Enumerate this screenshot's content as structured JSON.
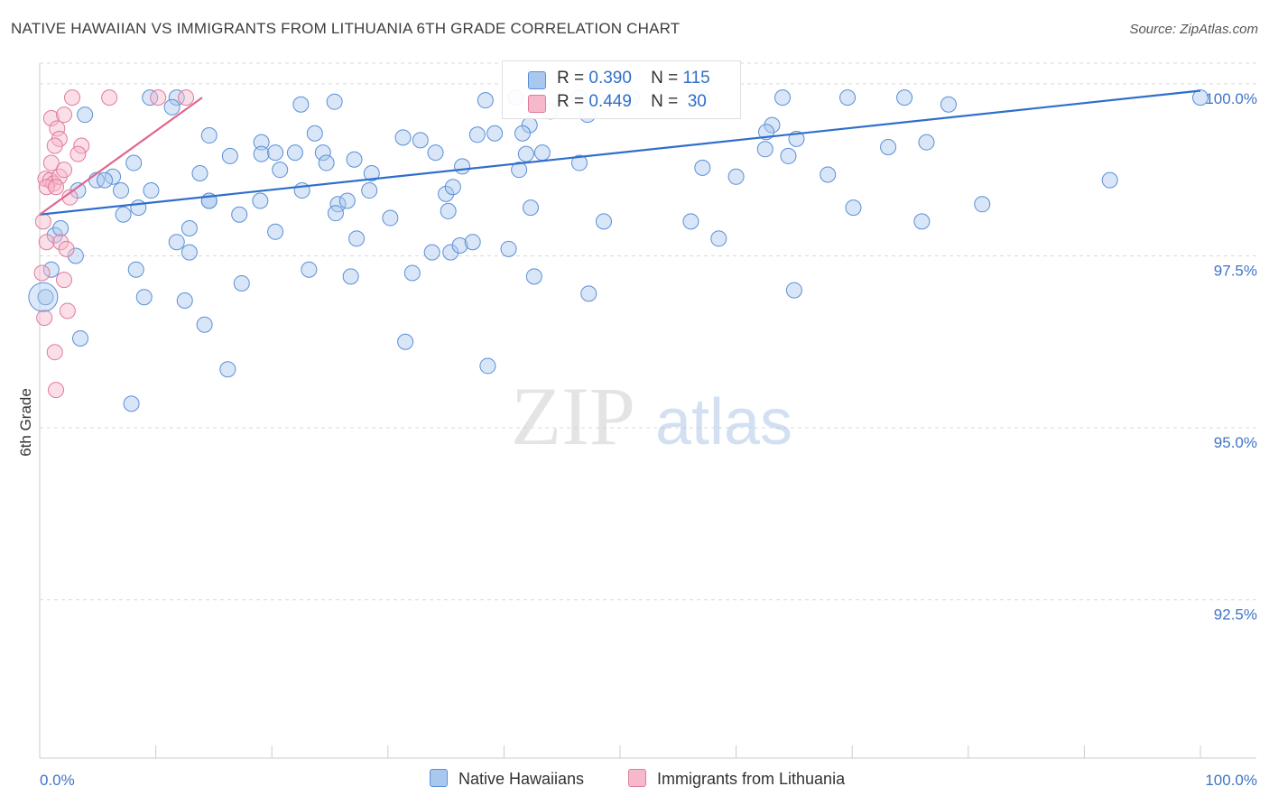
{
  "title": "NATIVE HAWAIIAN VS IMMIGRANTS FROM LITHUANIA 6TH GRADE CORRELATION CHART",
  "source": "Source: ZipAtlas.com",
  "watermark": {
    "zip": "ZIP",
    "atlas": "atlas"
  },
  "legend_top": {
    "r_label": "R =",
    "n_label": "N =",
    "rows": [
      {
        "r": "0.390",
        "n": "115",
        "color": "#a9c8f0"
      },
      {
        "r": "0.449",
        "n": "30",
        "color": "#f6b9cb"
      }
    ]
  },
  "legend_bottom": [
    {
      "label": "Native Hawaiians",
      "color": "#a9c8f0"
    },
    {
      "label": "Immigrants from Lithuania",
      "color": "#f6b9cb"
    }
  ],
  "chart_data": {
    "type": "scatter",
    "title": "NATIVE HAWAIIAN VS IMMIGRANTS FROM LITHUANIA 6TH GRADE CORRELATION CHART",
    "xlabel": "",
    "ylabel": "6th Grade",
    "xlim": [
      0,
      100
    ],
    "ylim": [
      90.2,
      100.3
    ],
    "x_tick_labels": [
      "0.0%",
      "100.0%"
    ],
    "y_ticks": [
      92.5,
      95.0,
      97.5,
      100.0
    ],
    "y_tick_labels": [
      "92.5%",
      "95.0%",
      "97.5%",
      "100.0%"
    ],
    "grid": true,
    "series": [
      {
        "name": "Native Hawaiians",
        "color": "#a9c8f0",
        "stroke": "#5b8fd6",
        "line_color": "#2f6fcb",
        "R": 0.39,
        "N": 115,
        "trend": {
          "x": [
            0,
            100
          ],
          "y": [
            98.1,
            99.9
          ]
        },
        "points": [
          [
            9.5,
            99.8
          ],
          [
            11.8,
            99.8
          ],
          [
            41,
            99.8
          ],
          [
            46.5,
            99.8
          ],
          [
            51,
            99.8
          ],
          [
            57,
            99.8
          ],
          [
            64,
            99.8
          ],
          [
            69.6,
            99.8
          ],
          [
            74.5,
            99.8
          ],
          [
            100,
            99.8
          ],
          [
            3.9,
            99.55
          ],
          [
            11.4,
            99.66
          ],
          [
            22.5,
            99.7
          ],
          [
            25.4,
            99.74
          ],
          [
            38.4,
            99.76
          ],
          [
            44,
            99.6
          ],
          [
            47.2,
            99.55
          ],
          [
            78.3,
            99.7
          ],
          [
            42.2,
            99.4
          ],
          [
            63.1,
            99.4
          ],
          [
            14.6,
            99.25
          ],
          [
            19.1,
            99.15
          ],
          [
            23.7,
            99.28
          ],
          [
            31.3,
            99.22
          ],
          [
            32.8,
            99.18
          ],
          [
            37.7,
            99.26
          ],
          [
            41.6,
            99.28
          ],
          [
            39.2,
            99.28
          ],
          [
            62.6,
            99.3
          ],
          [
            65.2,
            99.2
          ],
          [
            8.1,
            98.85
          ],
          [
            16.4,
            98.95
          ],
          [
            19.1,
            98.98
          ],
          [
            20.3,
            99.0
          ],
          [
            22,
            99
          ],
          [
            24.4,
            99.0
          ],
          [
            27.1,
            98.9
          ],
          [
            34.1,
            99.0
          ],
          [
            41.9,
            98.98
          ],
          [
            43.3,
            99.0
          ],
          [
            62.5,
            99.05
          ],
          [
            64.5,
            98.95
          ],
          [
            73.1,
            99.08
          ],
          [
            76.4,
            99.15
          ],
          [
            4.9,
            98.6
          ],
          [
            6.3,
            98.65
          ],
          [
            13.8,
            98.7
          ],
          [
            20.7,
            98.75
          ],
          [
            24.7,
            98.85
          ],
          [
            28.6,
            98.7
          ],
          [
            36.4,
            98.8
          ],
          [
            41.3,
            98.75
          ],
          [
            46.5,
            98.85
          ],
          [
            57.1,
            98.78
          ],
          [
            60,
            98.65
          ],
          [
            67.9,
            98.68
          ],
          [
            92.2,
            98.6
          ],
          [
            3.3,
            98.45
          ],
          [
            5.6,
            98.6
          ],
          [
            7,
            98.45
          ],
          [
            9.6,
            98.45
          ],
          [
            14.6,
            98.3
          ],
          [
            19,
            98.3
          ],
          [
            22.6,
            98.45
          ],
          [
            25.7,
            98.25
          ],
          [
            26.5,
            98.3
          ],
          [
            28.4,
            98.45
          ],
          [
            35,
            98.4
          ],
          [
            35.6,
            98.5
          ],
          [
            42.3,
            98.2
          ],
          [
            7.2,
            98.1
          ],
          [
            8.5,
            98.2
          ],
          [
            14.6,
            98.3
          ],
          [
            17.2,
            98.1
          ],
          [
            25.5,
            98.12
          ],
          [
            30.2,
            98.05
          ],
          [
            35.2,
            98.15
          ],
          [
            48.6,
            98.0
          ],
          [
            56.1,
            98.0
          ],
          [
            70.1,
            98.2
          ],
          [
            76,
            98.0
          ],
          [
            81.2,
            98.25
          ],
          [
            1.3,
            97.8
          ],
          [
            1.8,
            97.9
          ],
          [
            12.9,
            97.9
          ],
          [
            20.3,
            97.85
          ],
          [
            27.3,
            97.75
          ],
          [
            33.8,
            97.55
          ],
          [
            35.4,
            97.55
          ],
          [
            36.2,
            97.65
          ],
          [
            37.3,
            97.7
          ],
          [
            40.4,
            97.6
          ],
          [
            3.1,
            97.5
          ],
          [
            8.3,
            97.3
          ],
          [
            11.8,
            97.7
          ],
          [
            12.9,
            97.55
          ],
          [
            17.4,
            97.1
          ],
          [
            23.2,
            97.3
          ],
          [
            26.8,
            97.2
          ],
          [
            32.1,
            97.25
          ],
          [
            42.6,
            97.2
          ],
          [
            0.5,
            96.9
          ],
          [
            1,
            97.3
          ],
          [
            9,
            96.9
          ],
          [
            12.5,
            96.85
          ],
          [
            14.2,
            96.5
          ],
          [
            16.2,
            95.85
          ],
          [
            31.5,
            96.25
          ],
          [
            47.3,
            96.95
          ],
          [
            58.5,
            97.75
          ],
          [
            65,
            97.0
          ],
          [
            3.5,
            96.3
          ],
          [
            7.9,
            95.35
          ],
          [
            38.6,
            95.9
          ]
        ]
      },
      {
        "name": "Immigrants from Lithuania",
        "color": "#f6b9cb",
        "stroke": "#e07b9a",
        "line_color": "#e0678e",
        "R": 0.449,
        "N": 30,
        "trend": {
          "x": [
            0,
            14
          ],
          "y": [
            98.1,
            99.8
          ]
        },
        "points": [
          [
            2.8,
            99.8
          ],
          [
            6,
            99.8
          ],
          [
            10.2,
            99.8
          ],
          [
            12.6,
            99.8
          ],
          [
            1,
            99.5
          ],
          [
            2.1,
            99.55
          ],
          [
            1.5,
            99.35
          ],
          [
            1.7,
            99.2
          ],
          [
            3.6,
            99.1
          ],
          [
            3.3,
            98.98
          ],
          [
            1.3,
            99.1
          ],
          [
            1,
            98.85
          ],
          [
            0.5,
            98.62
          ],
          [
            0.9,
            98.6
          ],
          [
            1.2,
            98.55
          ],
          [
            1.7,
            98.65
          ],
          [
            2.1,
            98.75
          ],
          [
            0.6,
            98.5
          ],
          [
            1.4,
            98.5
          ],
          [
            2.6,
            98.35
          ],
          [
            0.3,
            98.0
          ],
          [
            0.6,
            97.7
          ],
          [
            1.8,
            97.7
          ],
          [
            2.3,
            97.6
          ],
          [
            0.2,
            97.25
          ],
          [
            2.1,
            97.15
          ],
          [
            2.4,
            96.7
          ],
          [
            0.4,
            96.6
          ],
          [
            1.3,
            96.1
          ],
          [
            1.4,
            95.55
          ]
        ]
      }
    ]
  }
}
